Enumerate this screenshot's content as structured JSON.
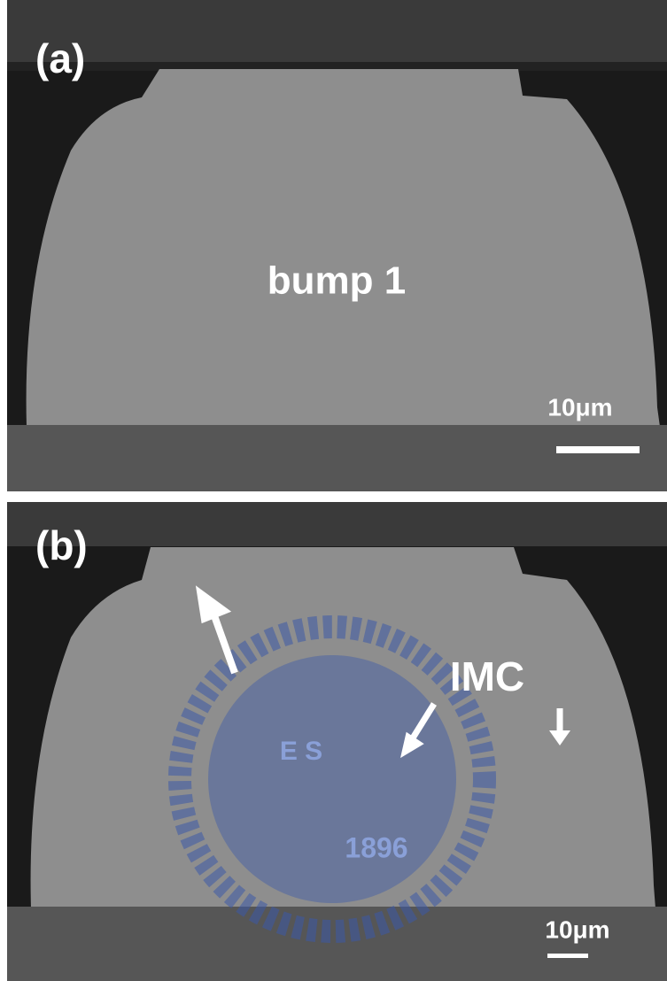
{
  "panels": [
    {
      "label": "(a)",
      "annotation": "bump 1",
      "scale_bar": "10μm"
    },
    {
      "label": "(b)",
      "annotation": "IMC",
      "scale_bar": "10μm"
    }
  ],
  "watermark": {
    "letters": "E S",
    "year": "1896"
  }
}
